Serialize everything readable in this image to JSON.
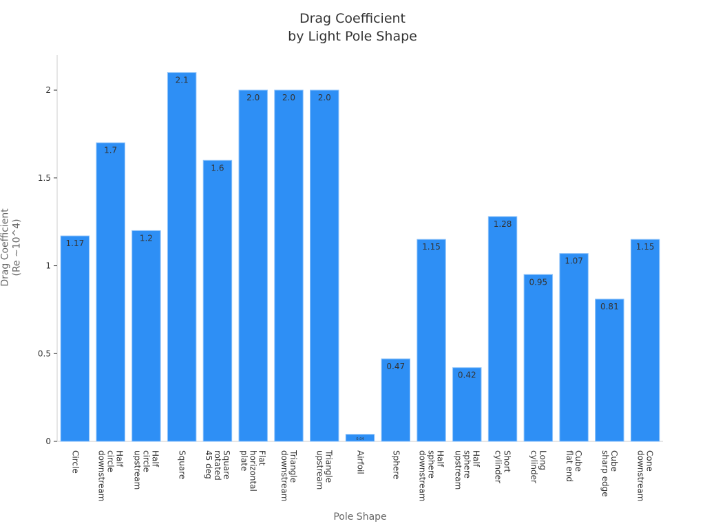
{
  "chart_data": {
    "type": "bar",
    "title": "Drag Coefficient\nby Light Pole Shape",
    "x_label": "Pole Shape",
    "y_label": "Drag Coefficient\n(Re ~10^4)",
    "categories": [
      "Circle",
      "Half\ncircle\ndownstream",
      "Half\ncircle\nupstream",
      "Square",
      "Square\nrotated\n45 deg",
      "Flat\nhorizontal\nplate",
      "Triangle\ndownstream",
      "Triangle\nupstream",
      "Airfoil",
      "Sphere",
      "Half\nsphere\ndownstream",
      "Half\nsphere\nupstream",
      "Short\ncylinder",
      "Long\ncylinder",
      "Cube\nflat end",
      "Cube\nsharp edge",
      "Cone\ndownstream"
    ],
    "values": [
      1.17,
      1.7,
      1.2,
      2.1,
      1.6,
      2,
      2,
      2,
      0.04,
      0.47,
      1.15,
      0.42,
      1.28,
      0.95,
      1.07,
      0.81,
      1.15
    ],
    "value_labels": [
      "1.17",
      "1.7",
      "1.2",
      "2.1",
      "1.6",
      "2.0",
      "2.0",
      "2.0",
      "0.04",
      "0.47",
      "1.15",
      "0.42",
      "1.28",
      "0.95",
      "1.07",
      "0.81",
      "1.15"
    ],
    "color": "#2e8ff5",
    "ylim": [
      0,
      2.2
    ],
    "yticks": [
      0,
      0.5,
      1,
      1.5,
      2
    ],
    "grid": false
  }
}
